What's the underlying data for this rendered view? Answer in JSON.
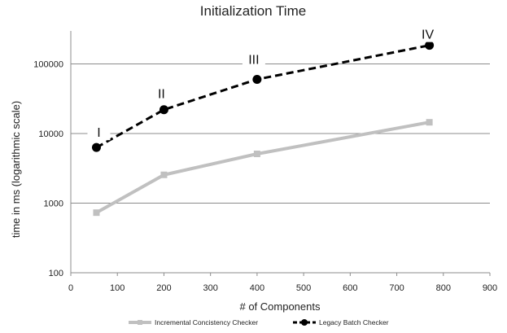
{
  "chart_data": {
    "type": "line",
    "title": "Initialization Time",
    "xlabel": "# of Components",
    "ylabel": "time in ms (logarithmic scale)",
    "xlim": [
      0,
      900
    ],
    "xticks": [
      0,
      100,
      200,
      300,
      400,
      500,
      600,
      700,
      800,
      900
    ],
    "ylim": [
      100,
      1000000
    ],
    "yscale": "log",
    "yticks": [
      100,
      1000,
      10000,
      100000
    ],
    "grid": "horizontal",
    "legend_position": "bottom",
    "series": [
      {
        "name": "Incremental Concistency Checker",
        "color": "#c0c0c0",
        "style": "solid",
        "marker": "square",
        "x": [
          55,
          200,
          400,
          770
        ],
        "y": [
          730,
          2550,
          5100,
          14500
        ]
      },
      {
        "name": "Legacy Batch Checker",
        "color": "#000000",
        "style": "dashed",
        "marker": "circle",
        "x": [
          55,
          200,
          400,
          770
        ],
        "y": [
          6300,
          22000,
          60000,
          185000
        ],
        "point_labels": [
          "I",
          "II",
          "III",
          "IV"
        ]
      }
    ]
  }
}
